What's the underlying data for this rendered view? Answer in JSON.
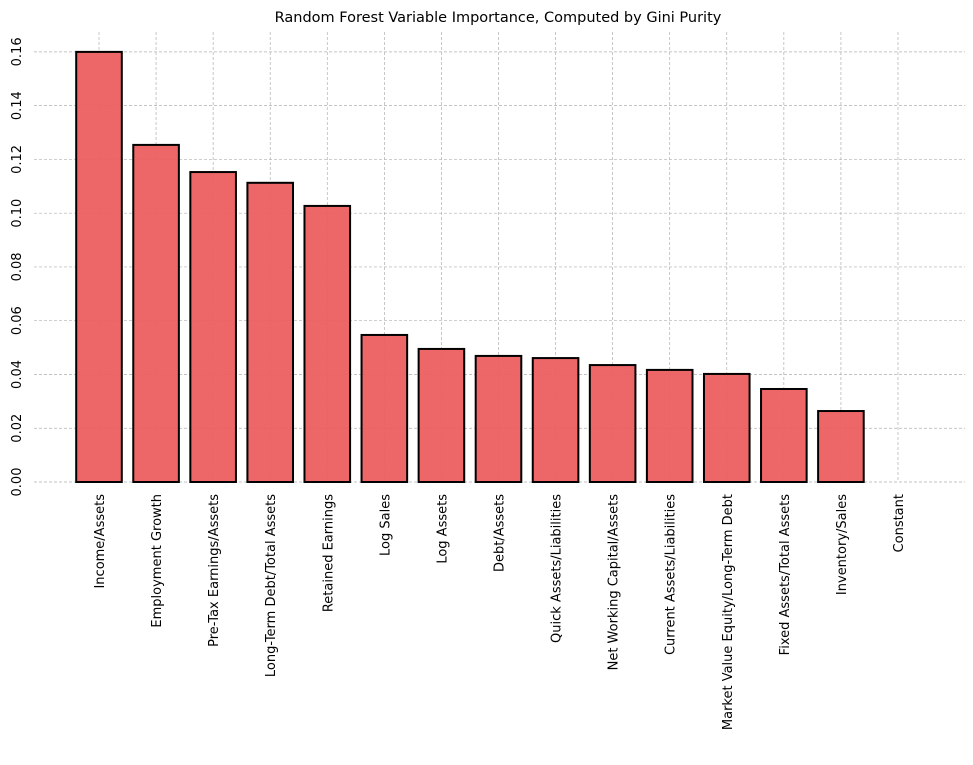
{
  "chart_data": {
    "type": "bar",
    "title": "Random Forest Variable Importance, Computed by Gini Purity",
    "xlabel": "",
    "ylabel": "",
    "categories": [
      "Income/Assets",
      "Employment Growth",
      "Pre-Tax Earnings/Assets",
      "Long-Term Debt/Total Assets",
      "Retained Earnings",
      "Log Sales",
      "Log Assets",
      "Debt/Assets",
      "Quick Assets/Liabilities",
      "Net Working Capital/Assets",
      "Current Assets/Liabilities",
      "Market Value Equity/Long-Term Debt",
      "Fixed Assets/Total Assets",
      "Inventory/Sales",
      "Constant"
    ],
    "values": [
      0.16,
      0.1254,
      0.1153,
      0.1113,
      0.1027,
      0.0547,
      0.0495,
      0.0469,
      0.0461,
      0.0435,
      0.0417,
      0.0402,
      0.0346,
      0.0264,
      0.0
    ],
    "ylim": [
      0,
      0.1674
    ],
    "yticks": [
      "0.00",
      "0.02",
      "0.04",
      "0.06",
      "0.08",
      "0.10",
      "0.12",
      "0.14",
      "0.16"
    ],
    "grid": true,
    "bar_color": "#ec5f61",
    "edge_color": "#000000"
  }
}
